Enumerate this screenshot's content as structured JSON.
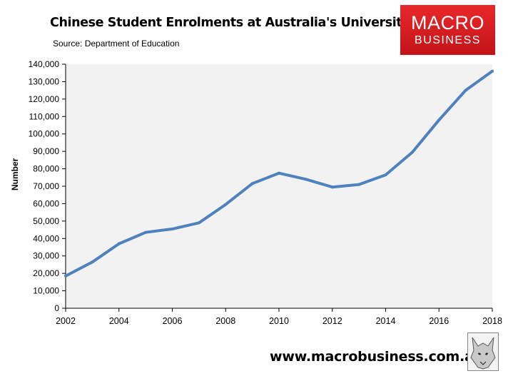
{
  "header": {
    "title": "Chinese Student Enrolments at Australia's Universities",
    "subtitle": "Source: Department of Education"
  },
  "logo": {
    "line1": "MACRO",
    "line2": "BUSINESS",
    "color": "#d71f22"
  },
  "footer": {
    "url": "www.macrobusiness.com.au",
    "image_icon": "wolf-icon"
  },
  "chart_data": {
    "type": "line",
    "ylabel": "Number",
    "xlabel": "",
    "ylim": [
      0,
      140000
    ],
    "yticks": [
      0,
      10000,
      20000,
      30000,
      40000,
      50000,
      60000,
      70000,
      80000,
      90000,
      100000,
      110000,
      120000,
      130000,
      140000
    ],
    "ytick_labels": [
      "0",
      "10,000",
      "20,000",
      "30,000",
      "40,000",
      "50,000",
      "60,000",
      "70,000",
      "80,000",
      "90,000",
      "100,000",
      "110,000",
      "120,000",
      "130,000",
      "140,000"
    ],
    "xlim": [
      2002,
      2018
    ],
    "xticks": [
      2002,
      2004,
      2006,
      2008,
      2010,
      2012,
      2014,
      2016,
      2018
    ],
    "xtick_labels": [
      "2002",
      "2004",
      "2006",
      "2008",
      "2010",
      "2012",
      "2014",
      "2016",
      "2018"
    ],
    "grid": false,
    "plot_background": "#f2f2f2",
    "series": [
      {
        "color": "#4f81bd",
        "x": [
          2002,
          2003,
          2004,
          2005,
          2006,
          2007,
          2008,
          2009,
          2010,
          2011,
          2012,
          2013,
          2014,
          2015,
          2016,
          2017,
          2018
        ],
        "y": [
          18500,
          26500,
          37000,
          43500,
          45500,
          49000,
          59500,
          71500,
          77500,
          74000,
          69500,
          71000,
          76500,
          89500,
          108000,
          125000,
          136000
        ]
      }
    ]
  }
}
